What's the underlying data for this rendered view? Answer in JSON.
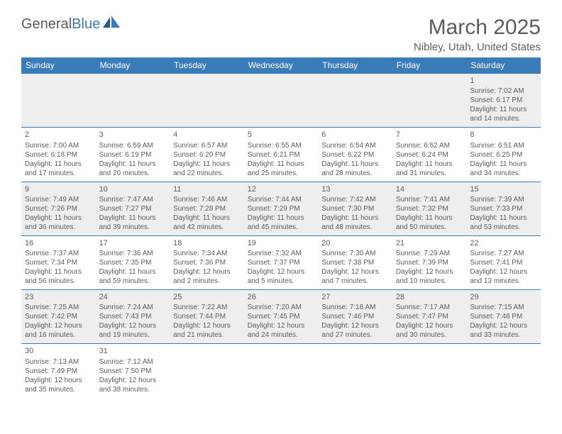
{
  "logo": {
    "text1": "General",
    "text2": "Blue"
  },
  "title": "March 2025",
  "location": "Nibley, Utah, United States",
  "day_headers": [
    "Sunday",
    "Monday",
    "Tuesday",
    "Wednesday",
    "Thursday",
    "Friday",
    "Saturday"
  ],
  "colors": {
    "header_bg": "#3a7cb8",
    "header_text": "#ffffff",
    "text": "#5c5c5c",
    "alt_row": "#eeeeee",
    "border": "#3a7cb8"
  },
  "weeks": [
    [
      null,
      null,
      null,
      null,
      null,
      null,
      {
        "n": "1",
        "sunrise": "Sunrise: 7:02 AM",
        "sunset": "Sunset: 6:17 PM",
        "daylight1": "Daylight: 11 hours",
        "daylight2": "and 14 minutes."
      }
    ],
    [
      {
        "n": "2",
        "sunrise": "Sunrise: 7:00 AM",
        "sunset": "Sunset: 6:18 PM",
        "daylight1": "Daylight: 11 hours",
        "daylight2": "and 17 minutes."
      },
      {
        "n": "3",
        "sunrise": "Sunrise: 6:59 AM",
        "sunset": "Sunset: 6:19 PM",
        "daylight1": "Daylight: 11 hours",
        "daylight2": "and 20 minutes."
      },
      {
        "n": "4",
        "sunrise": "Sunrise: 6:57 AM",
        "sunset": "Sunset: 6:20 PM",
        "daylight1": "Daylight: 11 hours",
        "daylight2": "and 22 minutes."
      },
      {
        "n": "5",
        "sunrise": "Sunrise: 6:55 AM",
        "sunset": "Sunset: 6:21 PM",
        "daylight1": "Daylight: 11 hours",
        "daylight2": "and 25 minutes."
      },
      {
        "n": "6",
        "sunrise": "Sunrise: 6:54 AM",
        "sunset": "Sunset: 6:22 PM",
        "daylight1": "Daylight: 11 hours",
        "daylight2": "and 28 minutes."
      },
      {
        "n": "7",
        "sunrise": "Sunrise: 6:52 AM",
        "sunset": "Sunset: 6:24 PM",
        "daylight1": "Daylight: 11 hours",
        "daylight2": "and 31 minutes."
      },
      {
        "n": "8",
        "sunrise": "Sunrise: 6:51 AM",
        "sunset": "Sunset: 6:25 PM",
        "daylight1": "Daylight: 11 hours",
        "daylight2": "and 34 minutes."
      }
    ],
    [
      {
        "n": "9",
        "sunrise": "Sunrise: 7:49 AM",
        "sunset": "Sunset: 7:26 PM",
        "daylight1": "Daylight: 11 hours",
        "daylight2": "and 36 minutes."
      },
      {
        "n": "10",
        "sunrise": "Sunrise: 7:47 AM",
        "sunset": "Sunset: 7:27 PM",
        "daylight1": "Daylight: 11 hours",
        "daylight2": "and 39 minutes."
      },
      {
        "n": "11",
        "sunrise": "Sunrise: 7:46 AM",
        "sunset": "Sunset: 7:28 PM",
        "daylight1": "Daylight: 11 hours",
        "daylight2": "and 42 minutes."
      },
      {
        "n": "12",
        "sunrise": "Sunrise: 7:44 AM",
        "sunset": "Sunset: 7:29 PM",
        "daylight1": "Daylight: 11 hours",
        "daylight2": "and 45 minutes."
      },
      {
        "n": "13",
        "sunrise": "Sunrise: 7:42 AM",
        "sunset": "Sunset: 7:30 PM",
        "daylight1": "Daylight: 11 hours",
        "daylight2": "and 48 minutes."
      },
      {
        "n": "14",
        "sunrise": "Sunrise: 7:41 AM",
        "sunset": "Sunset: 7:32 PM",
        "daylight1": "Daylight: 11 hours",
        "daylight2": "and 50 minutes."
      },
      {
        "n": "15",
        "sunrise": "Sunrise: 7:39 AM",
        "sunset": "Sunset: 7:33 PM",
        "daylight1": "Daylight: 11 hours",
        "daylight2": "and 53 minutes."
      }
    ],
    [
      {
        "n": "16",
        "sunrise": "Sunrise: 7:37 AM",
        "sunset": "Sunset: 7:34 PM",
        "daylight1": "Daylight: 11 hours",
        "daylight2": "and 56 minutes."
      },
      {
        "n": "17",
        "sunrise": "Sunrise: 7:36 AM",
        "sunset": "Sunset: 7:35 PM",
        "daylight1": "Daylight: 11 hours",
        "daylight2": "and 59 minutes."
      },
      {
        "n": "18",
        "sunrise": "Sunrise: 7:34 AM",
        "sunset": "Sunset: 7:36 PM",
        "daylight1": "Daylight: 12 hours",
        "daylight2": "and 2 minutes."
      },
      {
        "n": "19",
        "sunrise": "Sunrise: 7:32 AM",
        "sunset": "Sunset: 7:37 PM",
        "daylight1": "Daylight: 12 hours",
        "daylight2": "and 5 minutes."
      },
      {
        "n": "20",
        "sunrise": "Sunrise: 7:30 AM",
        "sunset": "Sunset: 7:38 PM",
        "daylight1": "Daylight: 12 hours",
        "daylight2": "and 7 minutes."
      },
      {
        "n": "21",
        "sunrise": "Sunrise: 7:29 AM",
        "sunset": "Sunset: 7:39 PM",
        "daylight1": "Daylight: 12 hours",
        "daylight2": "and 10 minutes."
      },
      {
        "n": "22",
        "sunrise": "Sunrise: 7:27 AM",
        "sunset": "Sunset: 7:41 PM",
        "daylight1": "Daylight: 12 hours",
        "daylight2": "and 13 minutes."
      }
    ],
    [
      {
        "n": "23",
        "sunrise": "Sunrise: 7:25 AM",
        "sunset": "Sunset: 7:42 PM",
        "daylight1": "Daylight: 12 hours",
        "daylight2": "and 16 minutes."
      },
      {
        "n": "24",
        "sunrise": "Sunrise: 7:24 AM",
        "sunset": "Sunset: 7:43 PM",
        "daylight1": "Daylight: 12 hours",
        "daylight2": "and 19 minutes."
      },
      {
        "n": "25",
        "sunrise": "Sunrise: 7:22 AM",
        "sunset": "Sunset: 7:44 PM",
        "daylight1": "Daylight: 12 hours",
        "daylight2": "and 21 minutes."
      },
      {
        "n": "26",
        "sunrise": "Sunrise: 7:20 AM",
        "sunset": "Sunset: 7:45 PM",
        "daylight1": "Daylight: 12 hours",
        "daylight2": "and 24 minutes."
      },
      {
        "n": "27",
        "sunrise": "Sunrise: 7:18 AM",
        "sunset": "Sunset: 7:46 PM",
        "daylight1": "Daylight: 12 hours",
        "daylight2": "and 27 minutes."
      },
      {
        "n": "28",
        "sunrise": "Sunrise: 7:17 AM",
        "sunset": "Sunset: 7:47 PM",
        "daylight1": "Daylight: 12 hours",
        "daylight2": "and 30 minutes."
      },
      {
        "n": "29",
        "sunrise": "Sunrise: 7:15 AM",
        "sunset": "Sunset: 7:48 PM",
        "daylight1": "Daylight: 12 hours",
        "daylight2": "and 33 minutes."
      }
    ],
    [
      {
        "n": "30",
        "sunrise": "Sunrise: 7:13 AM",
        "sunset": "Sunset: 7:49 PM",
        "daylight1": "Daylight: 12 hours",
        "daylight2": "and 35 minutes."
      },
      {
        "n": "31",
        "sunrise": "Sunrise: 7:12 AM",
        "sunset": "Sunset: 7:50 PM",
        "daylight1": "Daylight: 12 hours",
        "daylight2": "and 38 minutes."
      },
      null,
      null,
      null,
      null,
      null
    ]
  ]
}
